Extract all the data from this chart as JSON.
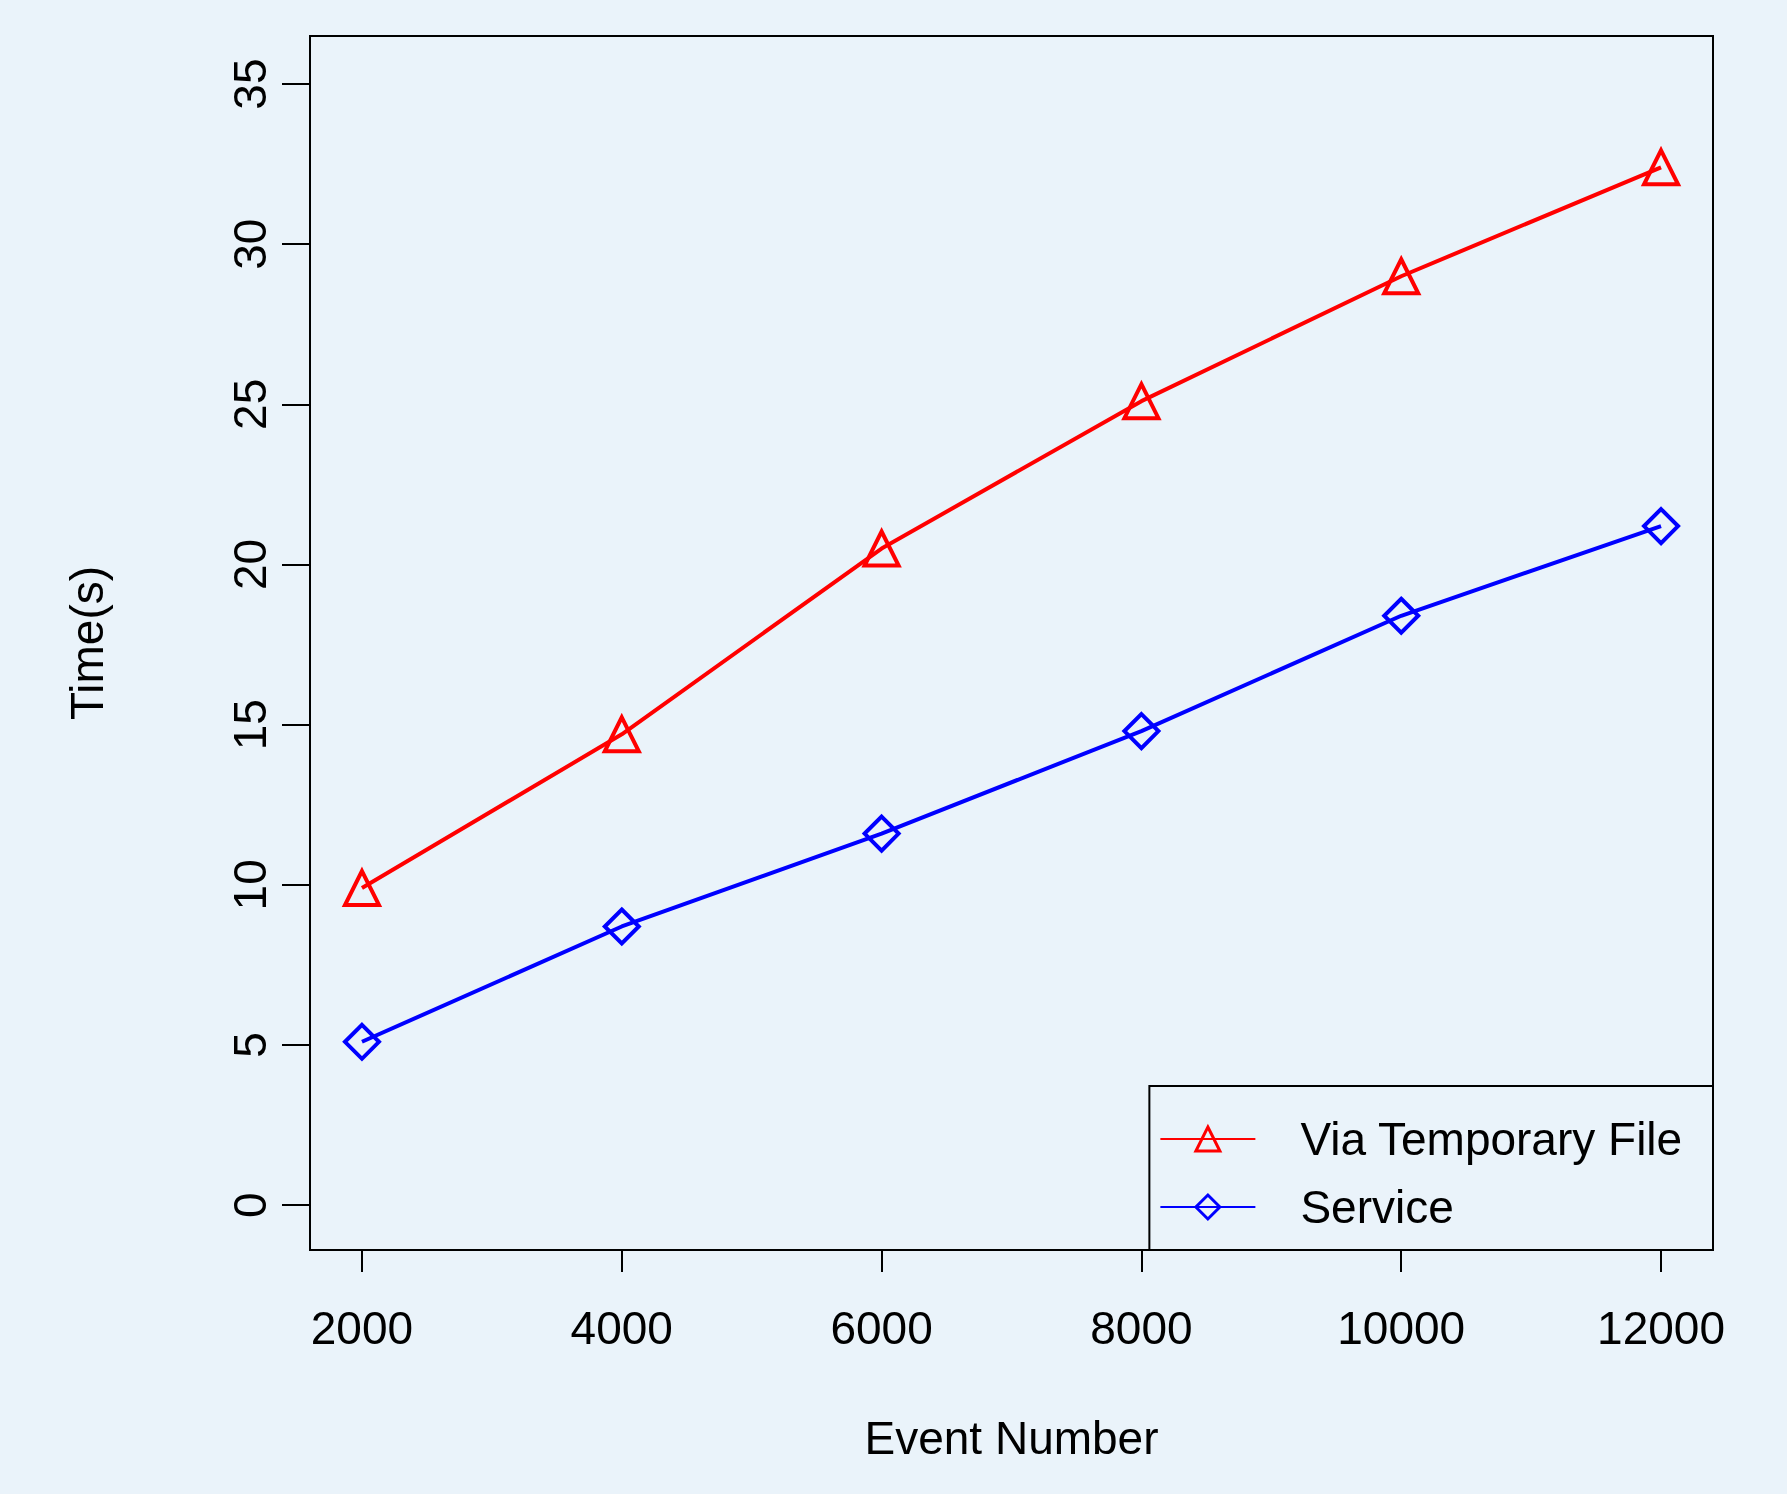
{
  "chart_data": {
    "type": "line",
    "xlabel": "Event Number",
    "ylabel": "Time(s)",
    "x": [
      2000,
      4000,
      6000,
      8000,
      10000,
      12000
    ],
    "series": [
      {
        "name": "Via Temporary File",
        "color": "#ff0000",
        "marker": "triangle",
        "values": [
          9.9,
          14.7,
          20.5,
          25.1,
          29.0,
          32.4
        ]
      },
      {
        "name": "Service",
        "color": "#0000ff",
        "marker": "diamond",
        "values": [
          5.1,
          8.7,
          11.6,
          14.8,
          18.4,
          21.2
        ]
      }
    ],
    "xlim": [
      1600,
      12400
    ],
    "xticks": [
      2000,
      4000,
      6000,
      8000,
      10000,
      12000
    ],
    "ylim": [
      -1.4,
      36.5
    ],
    "yticks": [
      0,
      5,
      10,
      15,
      20,
      25,
      30,
      35
    ],
    "grid": false,
    "legend": "bottom right",
    "line_style": "solid"
  }
}
